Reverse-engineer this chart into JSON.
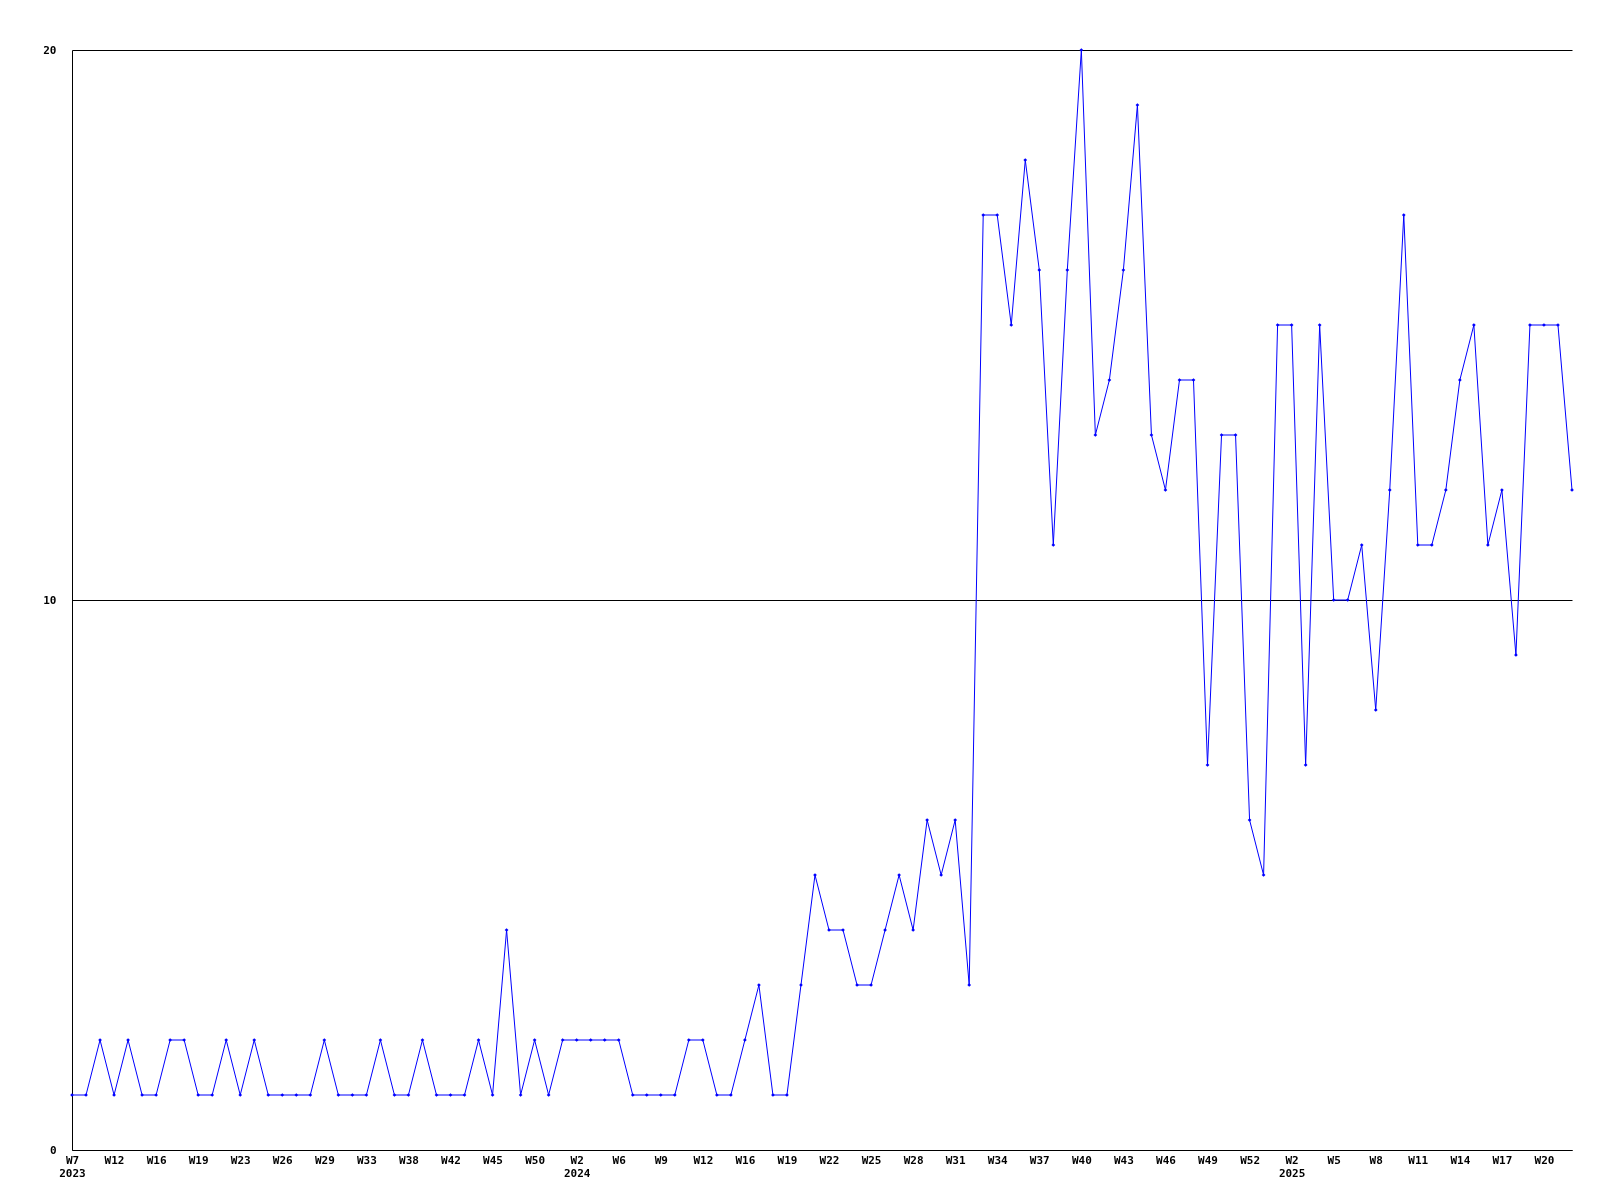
{
  "chart_data": {
    "type": "line",
    "categories": [
      "W7\n2023",
      null,
      null,
      "W12",
      null,
      null,
      "W16",
      null,
      null,
      "W19",
      null,
      null,
      "W23",
      null,
      null,
      "W26",
      null,
      null,
      "W29",
      null,
      null,
      "W33",
      null,
      null,
      "W38",
      null,
      null,
      "W42",
      null,
      null,
      "W45",
      null,
      null,
      "W50",
      null,
      null,
      "W2\n2024",
      null,
      null,
      "W6",
      null,
      null,
      "W9",
      null,
      null,
      "W12",
      null,
      null,
      "W16",
      null,
      null,
      "W19",
      null,
      null,
      "W22",
      null,
      null,
      "W25",
      null,
      null,
      "W28",
      null,
      null,
      "W31",
      null,
      null,
      "W34",
      null,
      null,
      "W37",
      null,
      null,
      "W40",
      null,
      null,
      "W43",
      null,
      null,
      "W46",
      null,
      null,
      "W49",
      null,
      null,
      "W52",
      null,
      null,
      "W2\n2025",
      null,
      null,
      "W5",
      null,
      null,
      "W8",
      null,
      null,
      "W11",
      null,
      null,
      "W14",
      null,
      null,
      "W17",
      null,
      null,
      "W20",
      null,
      null
    ],
    "series": [
      {
        "color": "#0000ff",
        "values": [
          1,
          1,
          2,
          1,
          2,
          1,
          1,
          2,
          2,
          1,
          1,
          2,
          1,
          2,
          1,
          1,
          1,
          1,
          2,
          1,
          1,
          1,
          2,
          1,
          1,
          2,
          1,
          1,
          1,
          2,
          1,
          4,
          1,
          2,
          1,
          2,
          2,
          2,
          2,
          2,
          1,
          1,
          1,
          1,
          2,
          2,
          1,
          1,
          2,
          3,
          1,
          1,
          3,
          5,
          4,
          4,
          3,
          3,
          4,
          5,
          4,
          6,
          5,
          6,
          3,
          17,
          17,
          15,
          18,
          16,
          11,
          16,
          20,
          13,
          14,
          16,
          19,
          13,
          12,
          14,
          14,
          7,
          13,
          13,
          6,
          5,
          15,
          15,
          7,
          15,
          10,
          10,
          11,
          8,
          12,
          17,
          11,
          11,
          12,
          14,
          15,
          11,
          12,
          9,
          15,
          15,
          15,
          12
        ]
      }
    ],
    "ylim": [
      0,
      20
    ],
    "yticks": [
      0,
      10,
      20
    ],
    "grid": "y",
    "marker": "diamond",
    "line_style": "solid",
    "legend": false
  }
}
